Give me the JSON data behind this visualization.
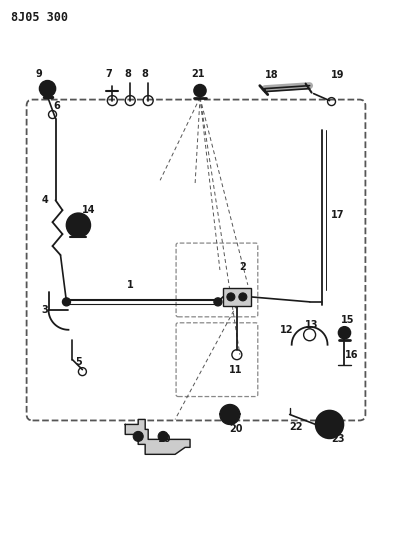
{
  "title": "8J05 300",
  "bg_color": "#ffffff",
  "lc": "#1a1a1a",
  "dc": "#555555",
  "fig_width": 3.96,
  "fig_height": 5.33,
  "dpi": 100
}
